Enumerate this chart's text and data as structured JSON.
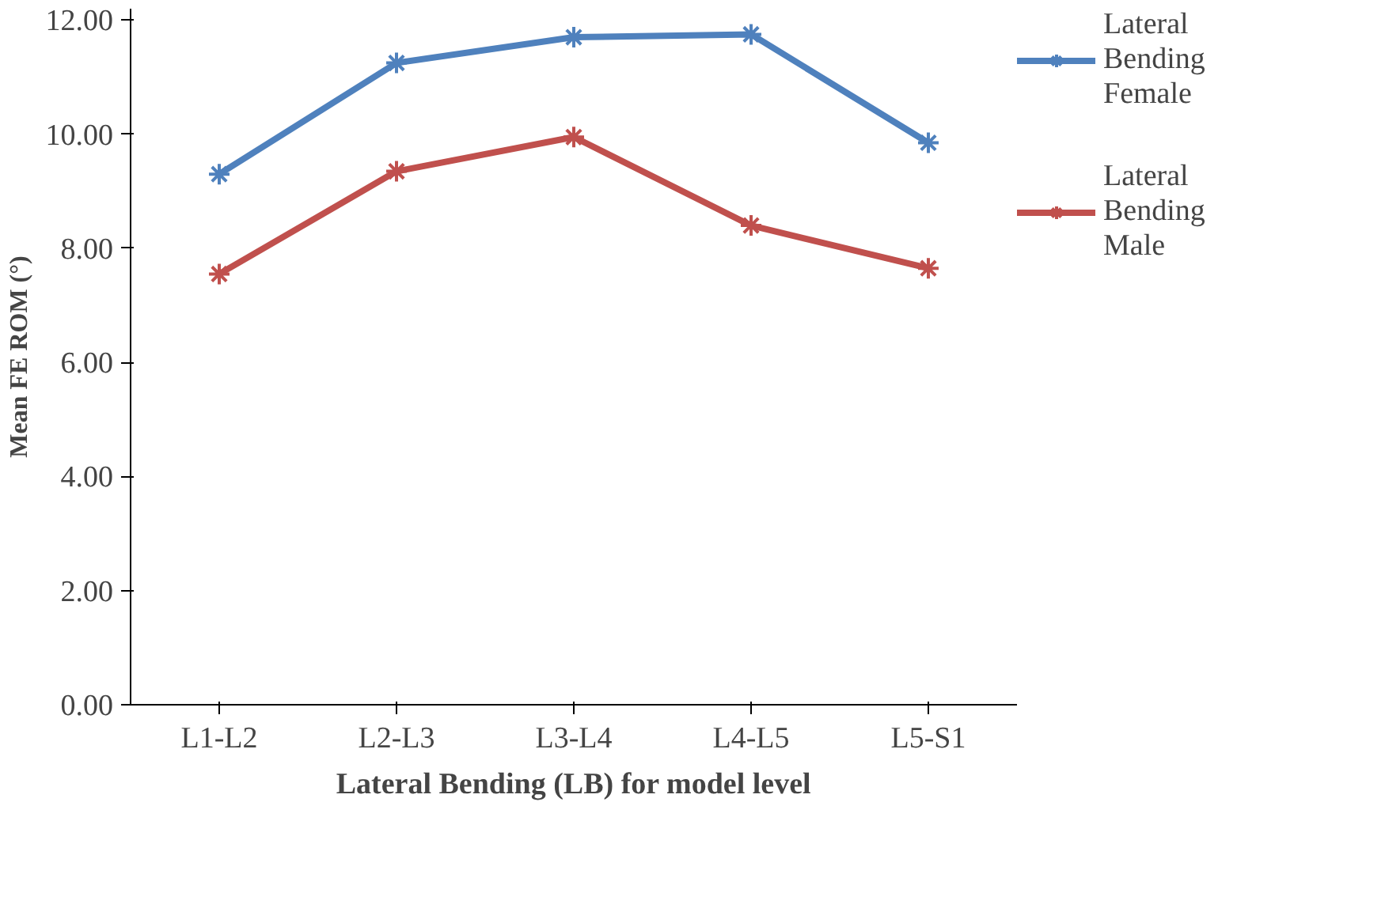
{
  "chart_data": {
    "type": "line",
    "xlabel": "Lateral Bending (LB) for model level",
    "ylabel": "Mean FE ROM (°)",
    "categories": [
      "L1-L2",
      "L2-L3",
      "L3-L4",
      "L4-L5",
      "L5-S1"
    ],
    "series": [
      {
        "name": "Lateral Bending Female",
        "color": "#4f81bd",
        "values": [
          9.3,
          11.25,
          11.7,
          11.75,
          9.85
        ]
      },
      {
        "name": "Lateral Bending Male",
        "color": "#c0504d",
        "values": [
          7.55,
          9.35,
          9.95,
          8.4,
          7.65
        ]
      }
    ],
    "ylim": [
      0,
      12.2
    ],
    "yticks": [
      {
        "value": 0,
        "label": "0.00"
      },
      {
        "value": 2,
        "label": "2.00"
      },
      {
        "value": 4,
        "label": "4.00"
      },
      {
        "value": 6,
        "label": "6.00"
      },
      {
        "value": 8,
        "label": "8.00"
      },
      {
        "value": 10,
        "label": "10.00"
      },
      {
        "value": 12,
        "label": "12.00"
      }
    ],
    "grid": false,
    "legend": "right",
    "marker": "cross",
    "line_style": "solid"
  }
}
